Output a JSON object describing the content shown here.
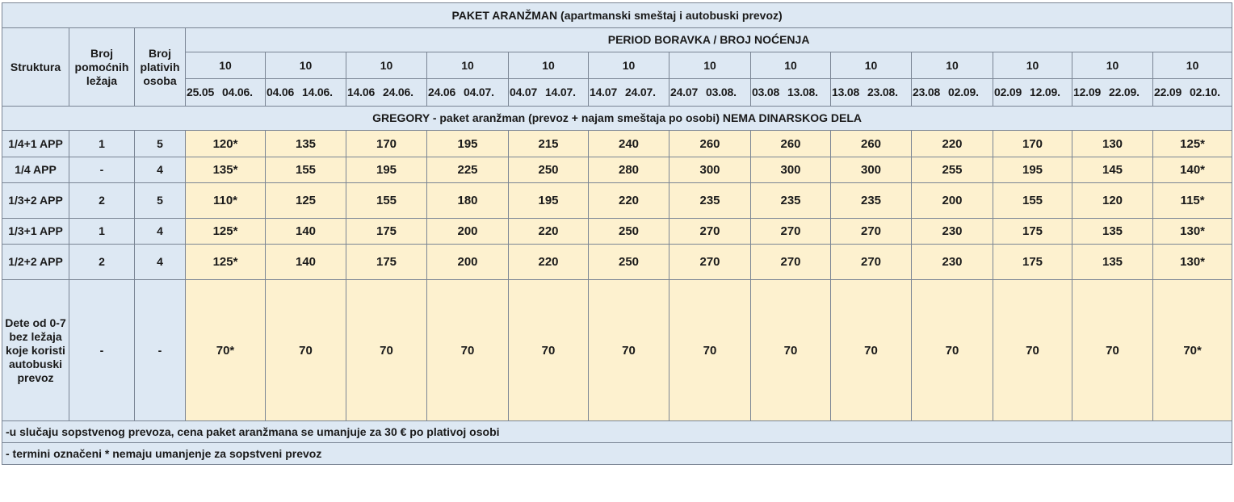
{
  "title": "PAKET ARANŽMAN (apartmanski smeštaj i autobuski prevoz)",
  "headers": {
    "struktura": "Struktura",
    "broj_pomocnih": "Broj pomoćnih ležaja",
    "broj_plativih": "Broj plativih osoba",
    "period": "PERIOD BORAVKA / BROJ NOĆENJA"
  },
  "periods": [
    {
      "nights": "10",
      "from": "25.05",
      "to": "04.06."
    },
    {
      "nights": "10",
      "from": "04.06",
      "to": "14.06."
    },
    {
      "nights": "10",
      "from": "14.06",
      "to": "24.06."
    },
    {
      "nights": "10",
      "from": "24.06",
      "to": "04.07."
    },
    {
      "nights": "10",
      "from": "04.07",
      "to": "14.07."
    },
    {
      "nights": "10",
      "from": "14.07",
      "to": "24.07."
    },
    {
      "nights": "10",
      "from": "24.07",
      "to": "03.08."
    },
    {
      "nights": "10",
      "from": "03.08",
      "to": "13.08."
    },
    {
      "nights": "10",
      "from": "13.08",
      "to": "23.08."
    },
    {
      "nights": "10",
      "from": "23.08",
      "to": "02.09."
    },
    {
      "nights": "10",
      "from": "02.09",
      "to": "12.09."
    },
    {
      "nights": "10",
      "from": "12.09",
      "to": "22.09."
    },
    {
      "nights": "10",
      "from": "22.09",
      "to": "02.10."
    }
  ],
  "section": "GREGORY - paket aranžman (prevoz + najam smeštaja po osobi) NEMA DINARSKOG DELA",
  "rows": [
    {
      "structure": "1/4+1 APP",
      "aux": "1",
      "paying": "5",
      "prices": [
        "120*",
        "135",
        "170",
        "195",
        "215",
        "240",
        "260",
        "260",
        "260",
        "220",
        "170",
        "130",
        "125*"
      ]
    },
    {
      "structure": "1/4 APP",
      "aux": "-",
      "paying": "4",
      "prices": [
        "135*",
        "155",
        "195",
        "225",
        "250",
        "280",
        "300",
        "300",
        "300",
        "255",
        "195",
        "145",
        "140*"
      ]
    },
    {
      "structure": "1/3+2 APP",
      "aux": "2",
      "paying": "5",
      "prices": [
        "110*",
        "125",
        "155",
        "180",
        "195",
        "220",
        "235",
        "235",
        "235",
        "200",
        "155",
        "120",
        "115*"
      ]
    },
    {
      "structure": "1/3+1 APP",
      "aux": "1",
      "paying": "4",
      "prices": [
        "125*",
        "140",
        "175",
        "200",
        "220",
        "250",
        "270",
        "270",
        "270",
        "230",
        "175",
        "135",
        "130*"
      ]
    },
    {
      "structure": "1/2+2 APP",
      "aux": "2",
      "paying": "4",
      "prices": [
        "125*",
        "140",
        "175",
        "200",
        "220",
        "250",
        "270",
        "270",
        "270",
        "230",
        "175",
        "135",
        "130*"
      ]
    },
    {
      "structure": "Dete od 0-7 bez ležaja koje koristi autobuski prevoz",
      "aux": "-",
      "paying": "-",
      "prices": [
        "70*",
        "70",
        "70",
        "70",
        "70",
        "70",
        "70",
        "70",
        "70",
        "70",
        "70",
        "70",
        "70*"
      ]
    }
  ],
  "notes": [
    "-u slučaju sopstvenog prevoza, cena paket aranžmana se umanjuje za 30 € po plativoj osobi",
    "- termini označeni * nemaju umanjenje za sopstveni prevoz"
  ],
  "colors": {
    "header_bg": "#dde8f3",
    "price_bg": "#fdf1cf",
    "border": "#7a8594"
  }
}
